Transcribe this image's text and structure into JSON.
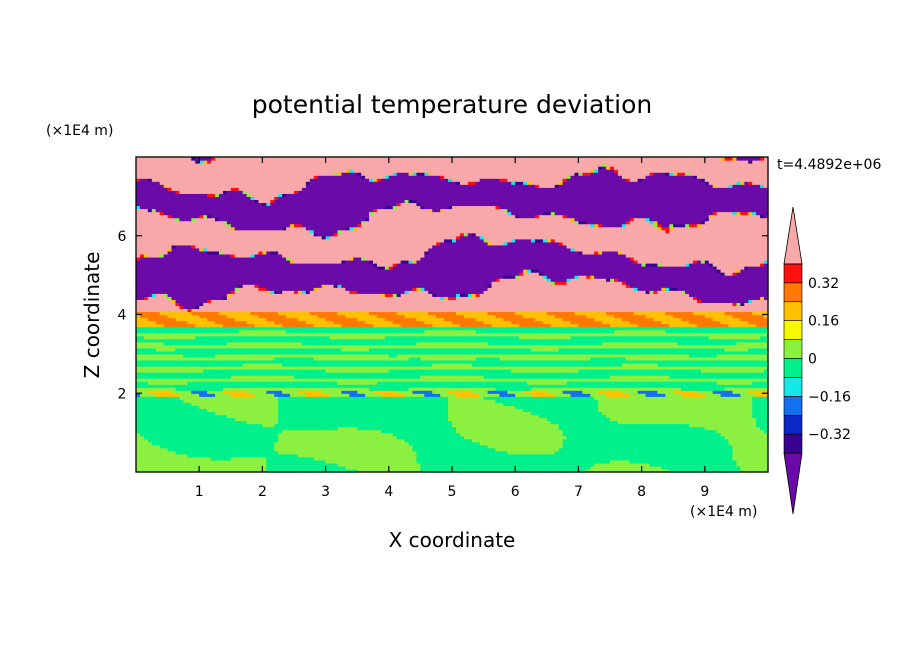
{
  "chart_data": {
    "type": "heatmap",
    "title": "potential temperature deviation",
    "xlabel": "X coordinate",
    "ylabel": "Z coordinate",
    "x_unit": "(×1E4 m)",
    "y_unit": "(×1E4 m)",
    "time_label": "t=4.4892e+06",
    "xlim": [
      0,
      10
    ],
    "ylim": [
      0,
      8
    ],
    "x_ticks": [
      "1",
      "2",
      "3",
      "4",
      "5",
      "6",
      "7",
      "8",
      "9"
    ],
    "y_ticks": [
      "2",
      "4",
      "6"
    ],
    "colorbar": {
      "levels": [
        -0.48,
        -0.4,
        -0.32,
        -0.24,
        -0.16,
        -0.08,
        0,
        0.08,
        0.16,
        0.24,
        0.32,
        0.4,
        0.48
      ],
      "colors": [
        "#6a0aa8",
        "#3a0090",
        "#0a28c8",
        "#1470f0",
        "#14e8e8",
        "#00f08c",
        "#8cf040",
        "#f8f800",
        "#ffc000",
        "#ff7800",
        "#ff1010",
        "#f8a8a8"
      ],
      "tick_labels": [
        "0.32",
        "0.16",
        "0",
        "−0.16",
        "−0.32"
      ],
      "tick_values": [
        0.32,
        0.16,
        0,
        -0.16,
        -0.32
      ],
      "extend": "both"
    },
    "layers": [
      {
        "z_range": [
          0,
          1.9
        ],
        "dominant_values": [
          0.04,
          -0.04
        ]
      },
      {
        "z_range": [
          1.9,
          2.1
        ],
        "dominant_values": [
          0.2,
          -0.2,
          0.04
        ]
      },
      {
        "z_range": [
          2.1,
          3.7
        ],
        "dominant_values": [
          -0.04,
          0.04
        ]
      },
      {
        "z_range": [
          3.7,
          4.1
        ],
        "dominant_values": [
          0.24,
          0.16
        ]
      },
      {
        "z_range": [
          4.1,
          8
        ],
        "dominant_values": [
          0.5,
          -0.5
        ]
      }
    ]
  }
}
